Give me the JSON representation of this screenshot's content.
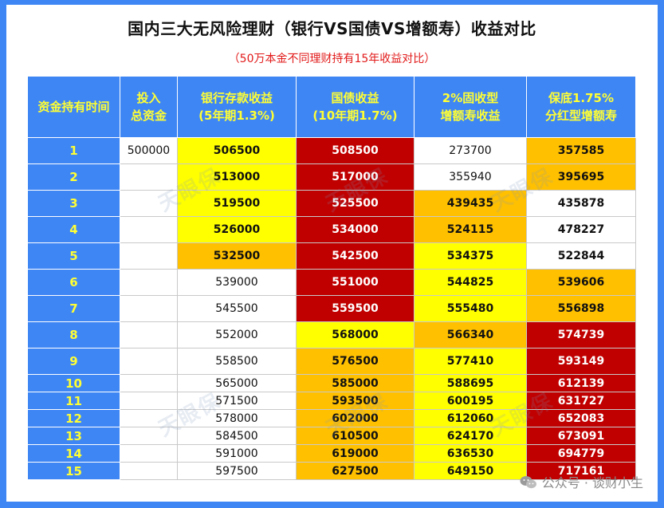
{
  "title": "国内三大无风险理财（银行VS国债VS增额寿）收益对比",
  "subtitle": "（50万本金不同理财持有15年收益对比）",
  "headers": [
    "资金持有时间",
    "投入\n总资金",
    "银行存款收益\n(5年期1.3%)",
    "国债收益\n(10年期1.7%)",
    "2%固收型\n增额寿收益",
    "保底1.75%\n分红型增额寿"
  ],
  "rows": [
    {
      "year": "1",
      "invest": "500000",
      "bank": "506500",
      "bond": "508500",
      "fixed": "273700",
      "div": "357585"
    },
    {
      "year": "2",
      "invest": "",
      "bank": "513000",
      "bond": "517000",
      "fixed": "355940",
      "div": "395695"
    },
    {
      "year": "3",
      "invest": "",
      "bank": "519500",
      "bond": "525500",
      "fixed": "439435",
      "div": "435878"
    },
    {
      "year": "4",
      "invest": "",
      "bank": "526000",
      "bond": "534000",
      "fixed": "524115",
      "div": "478227"
    },
    {
      "year": "5",
      "invest": "",
      "bank": "532500",
      "bond": "542500",
      "fixed": "534375",
      "div": "522844"
    },
    {
      "year": "6",
      "invest": "",
      "bank": "539000",
      "bond": "551000",
      "fixed": "544825",
      "div": "539606"
    },
    {
      "year": "7",
      "invest": "",
      "bank": "545500",
      "bond": "559500",
      "fixed": "555480",
      "div": "556898"
    },
    {
      "year": "8",
      "invest": "",
      "bank": "552000",
      "bond": "568000",
      "fixed": "566340",
      "div": "574739"
    },
    {
      "year": "9",
      "invest": "",
      "bank": "558500",
      "bond": "576500",
      "fixed": "577410",
      "div": "593149"
    },
    {
      "year": "10",
      "invest": "",
      "bank": "565000",
      "bond": "585000",
      "fixed": "588695",
      "div": "612139"
    },
    {
      "year": "11",
      "invest": "",
      "bank": "571500",
      "bond": "593500",
      "fixed": "600195",
      "div": "631727"
    },
    {
      "year": "12",
      "invest": "",
      "bank": "578000",
      "bond": "602000",
      "fixed": "612060",
      "div": "652083"
    },
    {
      "year": "13",
      "invest": "",
      "bank": "584500",
      "bond": "610500",
      "fixed": "624170",
      "div": "673091"
    },
    {
      "year": "14",
      "invest": "",
      "bank": "591000",
      "bond": "619000",
      "fixed": "636530",
      "div": "694779"
    },
    {
      "year": "15",
      "invest": "",
      "bank": "597500",
      "bond": "627500",
      "fixed": "649150",
      "div": "717161"
    }
  ],
  "watermark": "天眼保",
  "footer": "公众号 · 谈财小生",
  "colors": {
    "blue": "#3f86f5",
    "yellow": "#ffff00",
    "orange": "#ffc000",
    "red": "#c00000",
    "header_text": "#ffff33",
    "subtitle": "#e21a1a"
  }
}
